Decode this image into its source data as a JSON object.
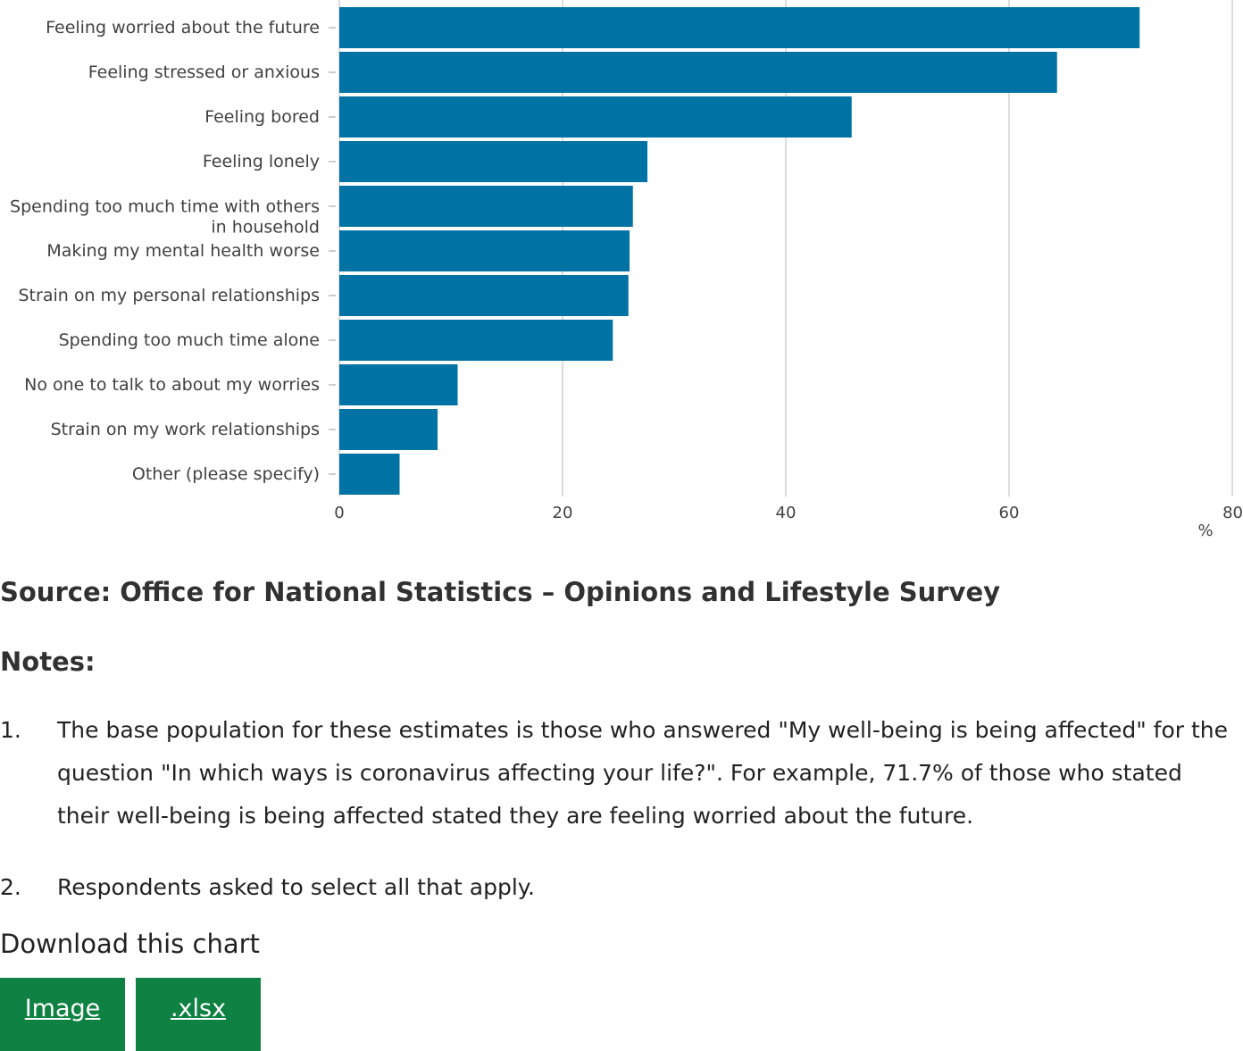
{
  "chart_data": {
    "type": "bar",
    "orientation": "horizontal",
    "categories": [
      [
        "Feeling worried about the future"
      ],
      [
        "Feeling stressed or anxious"
      ],
      [
        "Feeling bored"
      ],
      [
        "Feeling lonely"
      ],
      [
        "Spending too much time with others",
        "in household"
      ],
      [
        "Making my mental health worse"
      ],
      [
        "Strain on my personal relationships"
      ],
      [
        "Spending too much time alone"
      ],
      [
        "No one to talk to about my worries"
      ],
      [
        "Strain on my work relationships"
      ],
      [
        "Other (please specify)"
      ]
    ],
    "values": [
      71.7,
      64.3,
      45.9,
      27.6,
      26.3,
      26.0,
      25.9,
      24.5,
      10.6,
      8.8,
      5.4
    ],
    "xlim": [
      0,
      80
    ],
    "xticks": [
      0,
      20,
      40,
      60,
      80
    ],
    "xlabel": "%",
    "grid": true,
    "bar_color": "#0072a4"
  },
  "source": "Source: Office for National Statistics – Opinions and Lifestyle Survey",
  "notes": {
    "heading": "Notes:",
    "items": [
      {
        "num": "1.",
        "text": "The base population for these estimates is those who answered \"My well-being is being affected\" for the question \"In which ways is coronavirus affecting your life?\". For example, 71.7% of those who stated their well-being is being affected stated they are feeling worried about the future."
      },
      {
        "num": "2.",
        "text": "Respondents asked to select all that apply."
      }
    ]
  },
  "download": {
    "heading": "Download this chart",
    "image_label": "Image",
    "xlsx_label": ".xlsx",
    "button_color": "#0f8243"
  }
}
